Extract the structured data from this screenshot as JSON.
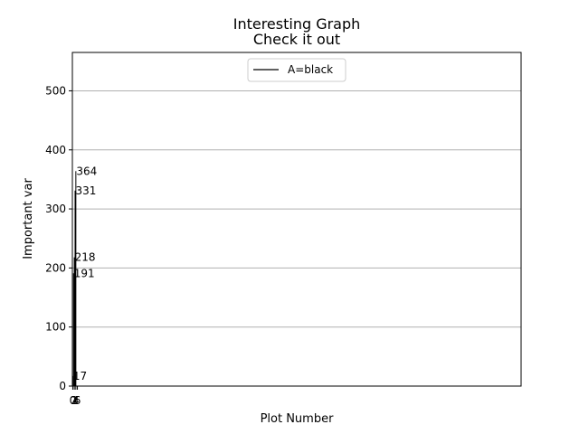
{
  "chart_data": {
    "type": "bar",
    "title": "Interesting Graph",
    "subtitle": "Check it out",
    "xlabel": "Plot Number",
    "ylabel": "Important var",
    "categories": [
      "0",
      "1",
      "2",
      "3",
      "4",
      "5"
    ],
    "values": [
      17,
      191,
      218,
      331,
      364,
      0
    ],
    "data_labels": [
      "17",
      "191",
      "218",
      "331",
      "364",
      ""
    ],
    "x_tick_labels": [
      "0",
      "2",
      "4",
      "6"
    ],
    "xlim": [
      -0.5,
      580
    ],
    "y_ticks": [
      0,
      100,
      200,
      300,
      400,
      500
    ],
    "ylim": [
      0,
      565
    ],
    "grid": "y",
    "legend": {
      "position": "top-center",
      "entries": [
        {
          "label": "A=black",
          "color": "#000000"
        }
      ]
    },
    "bar_color": "#000000",
    "grid_color": "#b0b0b0"
  }
}
